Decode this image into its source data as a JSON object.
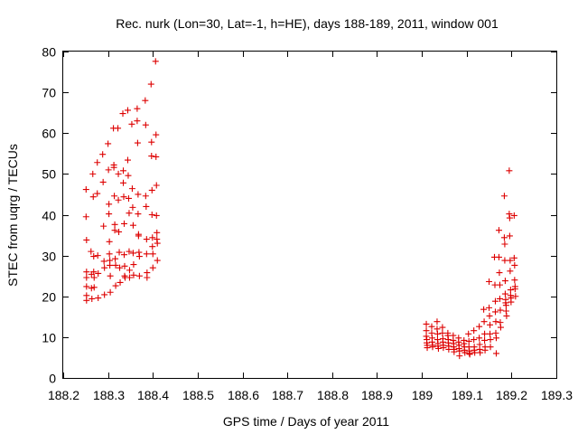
{
  "chart_data": {
    "type": "scatter",
    "title": "Rec. nurk (Lon=30, Lat=-1, h=HE), days 188-189, 2011, window 001",
    "xlabel": "GPS time / Days of year 2011",
    "ylabel": "STEC from uqrg / TECUs",
    "xlim": [
      188.2,
      189.3
    ],
    "ylim": [
      0,
      80
    ],
    "xticks": [
      "188.2",
      "188.3",
      "188.4",
      "188.5",
      "188.6",
      "188.7",
      "188.8",
      "188.9",
      "189",
      "189.1",
      "189.2",
      "189.3"
    ],
    "yticks": [
      "0",
      "10",
      "20",
      "30",
      "40",
      "50",
      "60",
      "70",
      "80"
    ],
    "grid": false,
    "legend": "none",
    "marker": "plus",
    "marker_color": "#dd0000",
    "series": [
      {
        "points": [
          [
            188.251,
            46.2
          ],
          [
            188.251,
            39.5
          ],
          [
            188.252,
            33.8
          ],
          [
            188.252,
            26.0
          ],
          [
            188.252,
            24.6
          ],
          [
            188.252,
            22.4
          ],
          [
            188.252,
            20.2
          ],
          [
            188.252,
            19.0
          ],
          [
            188.262,
            31.0
          ],
          [
            188.263,
            25.4
          ],
          [
            188.263,
            22.0
          ],
          [
            188.264,
            19.4
          ],
          [
            188.266,
            50.0
          ],
          [
            188.267,
            44.4
          ],
          [
            188.268,
            29.8
          ],
          [
            188.268,
            26.0
          ],
          [
            188.269,
            24.6
          ],
          [
            188.269,
            22.2
          ],
          [
            188.276,
            52.8
          ],
          [
            188.276,
            45.2
          ],
          [
            188.277,
            30.0
          ],
          [
            188.278,
            25.6
          ],
          [
            188.278,
            19.6
          ],
          [
            188.288,
            54.8
          ],
          [
            188.289,
            48.0
          ],
          [
            188.29,
            37.2
          ],
          [
            188.291,
            28.6
          ],
          [
            188.292,
            27.0
          ],
          [
            188.292,
            20.4
          ],
          [
            188.3,
            57.4
          ],
          [
            188.301,
            51.0
          ],
          [
            188.302,
            42.6
          ],
          [
            188.302,
            40.2
          ],
          [
            188.303,
            33.4
          ],
          [
            188.303,
            30.4
          ],
          [
            188.304,
            28.8
          ],
          [
            188.304,
            27.6
          ],
          [
            188.305,
            25.0
          ],
          [
            188.305,
            21.0
          ],
          [
            188.312,
            61.2
          ],
          [
            188.313,
            52.2
          ],
          [
            188.313,
            51.6
          ],
          [
            188.314,
            44.6
          ],
          [
            188.315,
            37.6
          ],
          [
            188.315,
            36.2
          ],
          [
            188.316,
            29.2
          ],
          [
            188.317,
            27.6
          ],
          [
            188.317,
            22.6
          ],
          [
            188.322,
            61.2
          ],
          [
            188.323,
            50.0
          ],
          [
            188.323,
            43.6
          ],
          [
            188.324,
            35.8
          ],
          [
            188.325,
            30.8
          ],
          [
            188.326,
            27.0
          ],
          [
            188.327,
            23.4
          ],
          [
            188.333,
            64.8
          ],
          [
            188.334,
            50.8
          ],
          [
            188.334,
            47.8
          ],
          [
            188.335,
            44.4
          ],
          [
            188.336,
            37.8
          ],
          [
            188.336,
            30.2
          ],
          [
            188.337,
            27.4
          ],
          [
            188.337,
            25.0
          ],
          [
            188.338,
            24.6
          ],
          [
            188.344,
            65.6
          ],
          [
            188.344,
            53.4
          ],
          [
            188.345,
            49.6
          ],
          [
            188.346,
            44.0
          ],
          [
            188.347,
            40.4
          ],
          [
            188.347,
            31.0
          ],
          [
            188.348,
            26.4
          ],
          [
            188.348,
            24.6
          ],
          [
            188.353,
            62.2
          ],
          [
            188.354,
            46.4
          ],
          [
            188.355,
            41.8
          ],
          [
            188.356,
            37.4
          ],
          [
            188.356,
            30.6
          ],
          [
            188.357,
            27.8
          ],
          [
            188.357,
            25.2
          ],
          [
            188.365,
            66.0
          ],
          [
            188.365,
            63.0
          ],
          [
            188.366,
            57.6
          ],
          [
            188.367,
            45.0
          ],
          [
            188.367,
            40.2
          ],
          [
            188.368,
            35.2
          ],
          [
            188.368,
            34.8
          ],
          [
            188.369,
            30.8
          ],
          [
            188.37,
            29.8
          ],
          [
            188.37,
            25.0
          ],
          [
            188.383,
            68.0
          ],
          [
            188.384,
            62.0
          ],
          [
            188.384,
            44.6
          ],
          [
            188.385,
            42.0
          ],
          [
            188.386,
            34.0
          ],
          [
            188.386,
            30.4
          ],
          [
            188.387,
            25.8
          ],
          [
            188.387,
            24.6
          ],
          [
            188.396,
            72.0
          ],
          [
            188.397,
            57.8
          ],
          [
            188.397,
            54.4
          ],
          [
            188.398,
            46.0
          ],
          [
            188.398,
            40.0
          ],
          [
            188.399,
            34.4
          ],
          [
            188.399,
            32.2
          ],
          [
            188.4,
            30.4
          ],
          [
            188.4,
            27.0
          ],
          [
            188.406,
            77.6
          ],
          [
            188.407,
            59.6
          ],
          [
            188.407,
            54.2
          ],
          [
            188.408,
            47.2
          ],
          [
            188.408,
            39.8
          ],
          [
            188.409,
            35.6
          ],
          [
            188.409,
            34.0
          ],
          [
            188.41,
            33.0
          ],
          [
            188.41,
            28.8
          ],
          [
            189.01,
            13.2
          ],
          [
            189.01,
            11.6
          ],
          [
            189.01,
            10.2
          ],
          [
            189.011,
            9.4
          ],
          [
            189.011,
            8.6
          ],
          [
            189.012,
            8.0
          ],
          [
            189.012,
            7.4
          ],
          [
            189.022,
            12.6
          ],
          [
            189.022,
            11.0
          ],
          [
            189.023,
            9.8
          ],
          [
            189.023,
            8.8
          ],
          [
            189.024,
            8.0
          ],
          [
            189.024,
            7.6
          ],
          [
            189.034,
            13.8
          ],
          [
            189.034,
            12.0
          ],
          [
            189.035,
            10.8
          ],
          [
            189.035,
            9.4
          ],
          [
            189.036,
            8.4
          ],
          [
            189.036,
            7.8
          ],
          [
            189.037,
            7.2
          ],
          [
            189.046,
            12.4
          ],
          [
            189.046,
            11.0
          ],
          [
            189.047,
            9.6
          ],
          [
            189.047,
            8.8
          ],
          [
            189.048,
            8.0
          ],
          [
            189.048,
            7.4
          ],
          [
            189.058,
            11.0
          ],
          [
            189.058,
            10.4
          ],
          [
            189.059,
            9.4
          ],
          [
            189.059,
            8.6
          ],
          [
            189.06,
            7.8
          ],
          [
            189.06,
            7.0
          ],
          [
            189.07,
            10.4
          ],
          [
            189.07,
            9.2
          ],
          [
            189.071,
            8.4
          ],
          [
            189.071,
            7.6
          ],
          [
            189.072,
            7.0
          ],
          [
            189.072,
            6.4
          ],
          [
            189.082,
            9.8
          ],
          [
            189.082,
            8.8
          ],
          [
            189.083,
            8.0
          ],
          [
            189.083,
            7.2
          ],
          [
            189.084,
            6.6
          ],
          [
            189.084,
            5.4
          ],
          [
            189.094,
            9.2
          ],
          [
            189.094,
            8.4
          ],
          [
            189.095,
            7.6
          ],
          [
            189.095,
            6.8
          ],
          [
            189.096,
            6.2
          ],
          [
            189.104,
            10.8
          ],
          [
            189.105,
            9.0
          ],
          [
            189.105,
            7.6
          ],
          [
            189.106,
            6.6
          ],
          [
            189.106,
            6.0
          ],
          [
            189.107,
            5.8
          ],
          [
            189.116,
            11.6
          ],
          [
            189.116,
            9.4
          ],
          [
            189.117,
            7.6
          ],
          [
            189.117,
            6.8
          ],
          [
            189.118,
            6.2
          ],
          [
            189.128,
            12.6
          ],
          [
            189.128,
            9.8
          ],
          [
            189.129,
            8.2
          ],
          [
            189.129,
            7.0
          ],
          [
            189.13,
            6.2
          ],
          [
            189.138,
            16.8
          ],
          [
            189.139,
            13.8
          ],
          [
            189.14,
            10.8
          ],
          [
            189.14,
            9.2
          ],
          [
            189.141,
            7.6
          ],
          [
            189.141,
            6.8
          ],
          [
            189.15,
            23.6
          ],
          [
            189.15,
            17.2
          ],
          [
            189.151,
            15.2
          ],
          [
            189.152,
            13.0
          ],
          [
            189.152,
            10.8
          ],
          [
            189.153,
            9.4
          ],
          [
            189.153,
            7.6
          ],
          [
            189.162,
            29.6
          ],
          [
            189.163,
            22.8
          ],
          [
            189.164,
            18.8
          ],
          [
            189.164,
            16.2
          ],
          [
            189.165,
            13.8
          ],
          [
            189.165,
            11.0
          ],
          [
            189.166,
            9.8
          ],
          [
            189.166,
            6.0
          ],
          [
            189.172,
            36.2
          ],
          [
            189.172,
            29.6
          ],
          [
            189.173,
            25.8
          ],
          [
            189.174,
            22.8
          ],
          [
            189.174,
            19.4
          ],
          [
            189.175,
            16.6
          ],
          [
            189.175,
            13.6
          ],
          [
            189.176,
            12.4
          ],
          [
            189.184,
            44.6
          ],
          [
            189.184,
            34.4
          ],
          [
            189.185,
            32.8
          ],
          [
            189.185,
            28.8
          ],
          [
            189.186,
            23.8
          ],
          [
            189.186,
            20.6
          ],
          [
            189.187,
            19.2
          ],
          [
            189.187,
            18.4
          ],
          [
            189.188,
            17.8
          ],
          [
            189.188,
            16.4
          ],
          [
            189.189,
            15.2
          ],
          [
            189.195,
            50.8
          ],
          [
            189.195,
            40.2
          ],
          [
            189.196,
            39.2
          ],
          [
            189.196,
            34.8
          ],
          [
            189.197,
            28.8
          ],
          [
            189.197,
            26.2
          ],
          [
            189.198,
            21.6
          ],
          [
            189.198,
            20.2
          ],
          [
            189.199,
            19.6
          ],
          [
            189.199,
            18.6
          ],
          [
            189.206,
            39.8
          ],
          [
            189.206,
            29.4
          ],
          [
            189.207,
            27.6
          ],
          [
            189.207,
            24.0
          ],
          [
            189.208,
            22.4
          ],
          [
            189.208,
            21.8
          ],
          [
            189.209,
            20.0
          ]
        ]
      }
    ]
  }
}
